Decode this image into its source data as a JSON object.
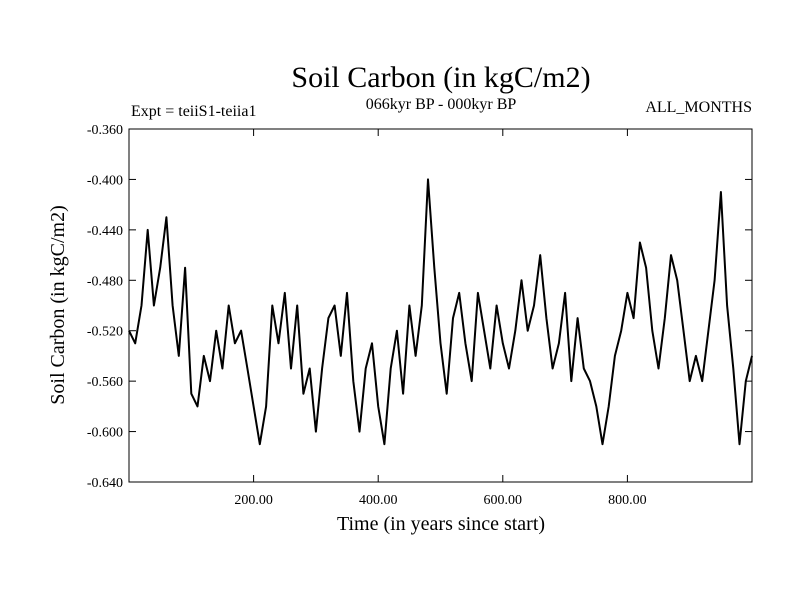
{
  "chart_data": {
    "type": "line",
    "title": "Soil Carbon (in kgC/m2)",
    "subtitle": "066kyr BP - 000kyr BP",
    "left_note": "Expt = teiiS1-teiia1",
    "right_note": "ALL_MONTHS",
    "xlabel": "Time (in years since start)",
    "ylabel": "Soil Carbon (in kgC/m2)",
    "xlim": [
      0,
      1000
    ],
    "ylim": [
      -0.64,
      -0.36
    ],
    "x_ticks": [
      200,
      400,
      600,
      800
    ],
    "x_tick_labels": [
      "200.00",
      "400.00",
      "600.00",
      "800.00"
    ],
    "y_ticks": [
      -0.36,
      -0.4,
      -0.44,
      -0.48,
      -0.52,
      -0.56,
      -0.6,
      -0.64
    ],
    "y_tick_labels": [
      "-0.360",
      "-0.400",
      "-0.440",
      "-0.480",
      "-0.520",
      "-0.560",
      "-0.600",
      "-0.640"
    ],
    "grid": false,
    "line_color": "#000000",
    "series": [
      {
        "x": [
          0,
          10,
          20,
          30,
          40,
          50,
          60,
          70,
          80,
          90,
          100,
          110,
          120,
          130,
          140,
          150,
          160,
          170,
          180,
          190,
          200,
          210,
          220,
          230,
          240,
          250,
          260,
          270,
          280,
          290,
          300,
          310,
          320,
          330,
          340,
          350,
          360,
          370,
          380,
          390,
          400,
          410,
          420,
          430,
          440,
          450,
          460,
          470,
          480,
          490,
          500,
          510,
          520,
          530,
          540,
          550,
          560,
          570,
          580,
          590,
          600,
          610,
          620,
          630,
          640,
          650,
          660,
          670,
          680,
          690,
          700,
          710,
          720,
          730,
          740,
          750,
          760,
          770,
          780,
          790,
          800,
          810,
          820,
          830,
          840,
          850,
          860,
          870,
          880,
          890,
          900,
          910,
          920,
          930,
          940,
          950,
          960,
          970,
          980,
          990,
          1000
        ],
        "values": [
          -0.52,
          -0.53,
          -0.5,
          -0.44,
          -0.5,
          -0.47,
          -0.43,
          -0.5,
          -0.54,
          -0.47,
          -0.57,
          -0.58,
          -0.54,
          -0.56,
          -0.52,
          -0.55,
          -0.5,
          -0.53,
          -0.52,
          -0.55,
          -0.58,
          -0.61,
          -0.58,
          -0.5,
          -0.53,
          -0.49,
          -0.55,
          -0.5,
          -0.57,
          -0.55,
          -0.6,
          -0.55,
          -0.51,
          -0.5,
          -0.54,
          -0.49,
          -0.56,
          -0.6,
          -0.55,
          -0.53,
          -0.58,
          -0.61,
          -0.55,
          -0.52,
          -0.57,
          -0.5,
          -0.54,
          -0.5,
          -0.4,
          -0.47,
          -0.53,
          -0.57,
          -0.51,
          -0.49,
          -0.53,
          -0.56,
          -0.49,
          -0.52,
          -0.55,
          -0.5,
          -0.53,
          -0.55,
          -0.52,
          -0.48,
          -0.52,
          -0.5,
          -0.46,
          -0.51,
          -0.55,
          -0.53,
          -0.49,
          -0.56,
          -0.51,
          -0.55,
          -0.56,
          -0.58,
          -0.61,
          -0.58,
          -0.54,
          -0.52,
          -0.49,
          -0.51,
          -0.45,
          -0.47,
          -0.52,
          -0.55,
          -0.51,
          -0.46,
          -0.48,
          -0.52,
          -0.56,
          -0.54,
          -0.56,
          -0.52,
          -0.48,
          -0.41,
          -0.5,
          -0.55,
          -0.61,
          -0.56,
          -0.54
        ]
      }
    ]
  }
}
